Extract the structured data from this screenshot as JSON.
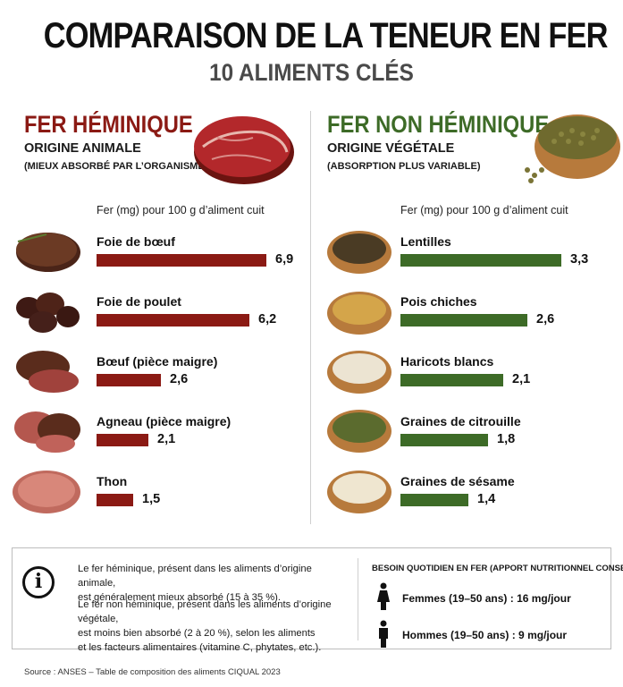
{
  "title": "COMPARAISON DE LA TENEUR EN FER",
  "subtitle": "10 ALIMENTS CLÉS",
  "heme": {
    "title": "FER HÉMINIQUE",
    "origin": "ORIGINE ANIMALE",
    "note": "(MIEUX ABSORBÉ PAR L’ORGANISME)",
    "axis_note": "Fer (mg) pour 100 g d’aliment cuit",
    "color": "#8b1a14"
  },
  "nonheme": {
    "title": "FER NON HÉMINIQUE",
    "origin": "ORIGINE VÉGÉTALE",
    "note": "(ABSORPTION PLUS VARIABLE)",
    "axis_note": "Fer (mg) pour 100 g d’aliment cuit",
    "color": "#3d6b27"
  },
  "chart_data": [
    {
      "type": "bar",
      "categories": [
        "Foie de bœuf",
        "Foie de poulet",
        "Bœuf (pièce maigre)",
        "Agneau (pièce maigre)",
        "Thon"
      ],
      "values": [
        6.9,
        6.2,
        2.6,
        2.1,
        1.5
      ],
      "value_labels": [
        "6,9",
        "6,2",
        "2,6",
        "2,1",
        "1,5"
      ],
      "title": "FER HÉMINIQUE",
      "xlabel": "Fer (mg) pour 100 g d’aliment cuit",
      "color": "#8b1a14",
      "xlim": [
        0,
        6.9
      ]
    },
    {
      "type": "bar",
      "categories": [
        "Lentilles",
        "Pois chiches",
        "Haricots blancs",
        "Graines de citrouille",
        "Graines de sésame"
      ],
      "values": [
        3.3,
        2.6,
        2.1,
        1.8,
        1.4
      ],
      "value_labels": [
        "3,3",
        "2,6",
        "2,1",
        "1,8",
        "1,4"
      ],
      "title": "FER NON HÉMINIQUE",
      "xlabel": "Fer (mg) pour 100 g d’aliment cuit",
      "color": "#3d6b27",
      "xlim": [
        0,
        3.3
      ]
    }
  ],
  "info": {
    "icon": "info-icon",
    "p1_line1": "Le fer héminique, présent dans les aliments d’origine animale,",
    "p1_line2": "est généralement mieux absorbé (15 à 35 %).",
    "p2_line1": "Le fer non héminique, présent dans les aliments d’origine végétale,",
    "p2_line2": "est moins bien absorbé (2 à 20 %), selon les aliments",
    "p2_line3": "et les facteurs alimentaires (vitamine C, phytates, etc.)."
  },
  "requirements": {
    "title": "BESOIN QUOTIDIEN EN FER (APPORT NUTRITIONNEL CONSEILLÉ)",
    "women": "Femmes (19–50 ans) : 16 mg/jour",
    "men": "Hommes (19–50 ans) : 9 mg/jour"
  },
  "source": "Source : ANSES – Table de composition des aliments CIQUAL 2023"
}
